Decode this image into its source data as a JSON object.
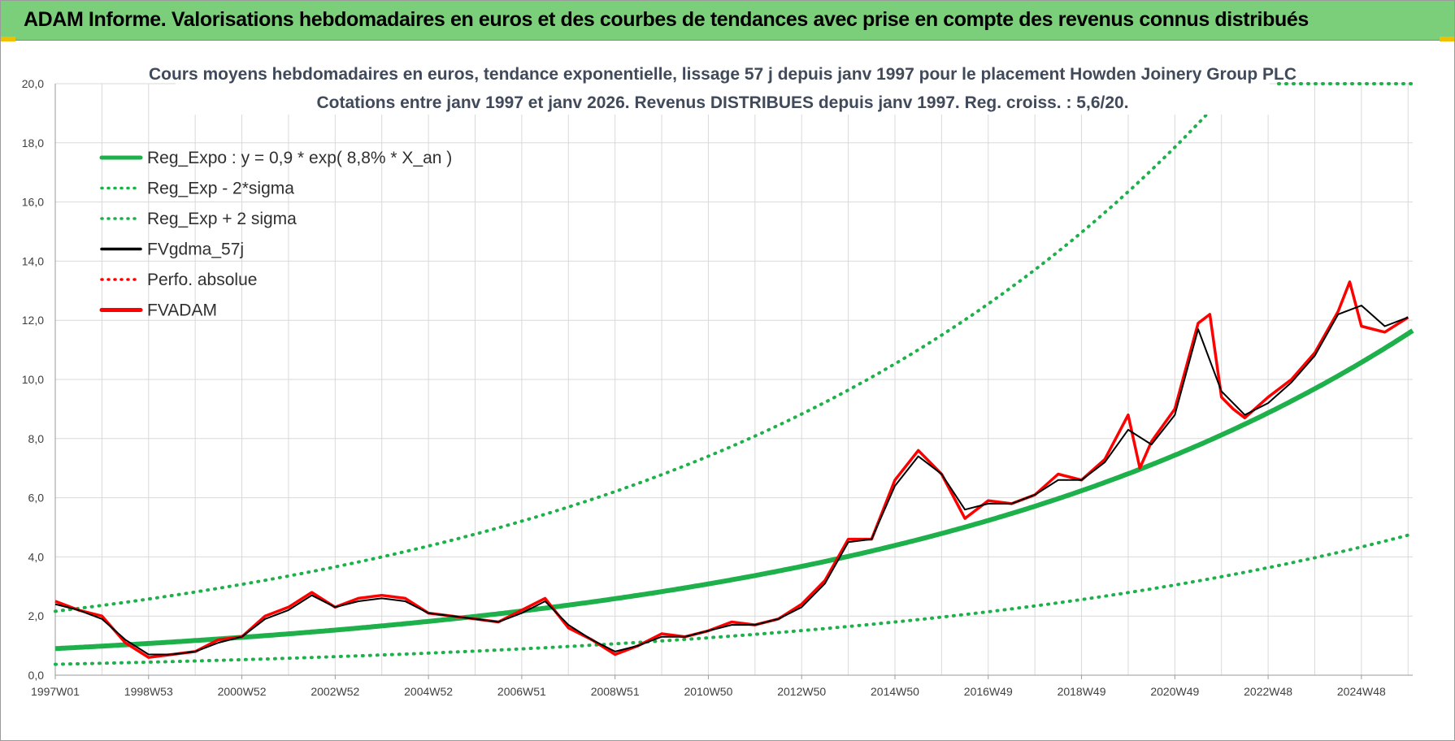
{
  "header": {
    "title": "ADAM Informe. Valorisations hebdomadaires en euros et des courbes de tendances avec prise en compte des revenus connus distribués"
  },
  "colors": {
    "header_bg": "#7ccf7a",
    "regression": "#1db04b",
    "fvadam": "#ff0000",
    "fvgdma": "#000000",
    "grid": "#d9d9d9"
  },
  "chart_data": {
    "type": "line",
    "title_line1": "Cours moyens hebdomadaires en euros, tendance exponentielle, lissage 57 j depuis janv 1997 pour le placement Howden Joinery Group PLC",
    "title_line2": "Cotations entre janv 1997 et janv 2026. Revenus DISTRIBUES depuis janv 1997. Reg. croiss. : 5,6/20.",
    "x_range": [
      1997.0,
      2026.1
    ],
    "ylim": [
      0,
      20
    ],
    "y_ticks": [
      "0,0",
      "2,0",
      "4,0",
      "6,0",
      "8,0",
      "10,0",
      "12,0",
      "14,0",
      "16,0",
      "18,0",
      "20,0"
    ],
    "x_ticks": [
      {
        "label": "1997W01",
        "x": 1997.0
      },
      {
        "label": "1998W53",
        "x": 1999.0
      },
      {
        "label": "2000W52",
        "x": 2001.0
      },
      {
        "label": "2002W52",
        "x": 2003.0
      },
      {
        "label": "2004W52",
        "x": 2005.0
      },
      {
        "label": "2006W51",
        "x": 2007.0
      },
      {
        "label": "2008W51",
        "x": 2009.0
      },
      {
        "label": "2010W50",
        "x": 2011.0
      },
      {
        "label": "2012W50",
        "x": 2013.0
      },
      {
        "label": "2014W50",
        "x": 2015.0
      },
      {
        "label": "2016W49",
        "x": 2017.0
      },
      {
        "label": "2018W49",
        "x": 2019.0
      },
      {
        "label": "2020W49",
        "x": 2021.0
      },
      {
        "label": "2022W48",
        "x": 2023.0
      },
      {
        "label": "2024W48",
        "x": 2025.0
      }
    ],
    "grid": true,
    "legend_position": "top-left",
    "legend": [
      {
        "label": "Reg_Expo : y = 0,9 * exp( 8,8% *  X_an )",
        "style": "solid",
        "color": "#1db04b"
      },
      {
        "label": "Reg_Exp - 2*sigma",
        "style": "dotted",
        "color": "#1db04b"
      },
      {
        "label": "Reg_Exp + 2 sigma",
        "style": "dotted",
        "color": "#1db04b"
      },
      {
        "label": "FVgdma_57j",
        "style": "solid",
        "color": "#000000"
      },
      {
        "label": "Perfo. absolue",
        "style": "dotted",
        "color": "#ff0000"
      },
      {
        "label": "FVADAM",
        "style": "solid",
        "color": "#ff0000"
      }
    ],
    "regression": {
      "a": 0.9,
      "rate": 0.088,
      "x0": 1997.0,
      "lower_factor": 0.41,
      "upper_factor": 2.4
    },
    "series": [
      {
        "name": "FVADAM",
        "x": [
          1997.0,
          1997.5,
          1998.0,
          1998.5,
          1999.0,
          1999.5,
          2000.0,
          2000.5,
          2001.0,
          2001.5,
          2002.0,
          2002.5,
          2003.0,
          2003.5,
          2004.0,
          2004.5,
          2005.0,
          2005.5,
          2006.0,
          2006.5,
          2007.0,
          2007.5,
          2008.0,
          2008.5,
          2009.0,
          2009.5,
          2010.0,
          2010.5,
          2011.0,
          2011.5,
          2012.0,
          2012.5,
          2013.0,
          2013.5,
          2014.0,
          2014.5,
          2015.0,
          2015.5,
          2016.0,
          2016.5,
          2017.0,
          2017.5,
          2018.0,
          2018.5,
          2019.0,
          2019.5,
          2020.0,
          2020.25,
          2020.5,
          2021.0,
          2021.5,
          2021.75,
          2022.0,
          2022.25,
          2022.5,
          2023.0,
          2023.5,
          2024.0,
          2024.5,
          2024.75,
          2025.0,
          2025.5,
          2026.0
        ],
        "y": [
          2.5,
          2.2,
          2.0,
          1.1,
          0.6,
          0.7,
          0.8,
          1.2,
          1.3,
          2.0,
          2.3,
          2.8,
          2.3,
          2.6,
          2.7,
          2.6,
          2.1,
          2.0,
          1.9,
          1.8,
          2.2,
          2.6,
          1.6,
          1.2,
          0.7,
          1.0,
          1.4,
          1.3,
          1.5,
          1.8,
          1.7,
          1.9,
          2.4,
          3.2,
          4.6,
          4.6,
          6.6,
          7.6,
          6.8,
          5.3,
          5.9,
          5.8,
          6.1,
          6.8,
          6.6,
          7.3,
          8.8,
          7.0,
          7.9,
          9.0,
          11.9,
          12.2,
          9.4,
          9.0,
          8.7,
          9.4,
          10.0,
          10.9,
          12.3,
          13.3,
          11.8,
          11.6,
          12.1
        ]
      },
      {
        "name": "FVgdma_57j",
        "x": [
          1997.0,
          1997.5,
          1998.0,
          1998.5,
          1999.0,
          1999.5,
          2000.0,
          2000.5,
          2001.0,
          2001.5,
          2002.0,
          2002.5,
          2003.0,
          2003.5,
          2004.0,
          2004.5,
          2005.0,
          2005.5,
          2006.0,
          2006.5,
          2007.0,
          2007.5,
          2008.0,
          2008.5,
          2009.0,
          2009.5,
          2010.0,
          2010.5,
          2011.0,
          2011.5,
          2012.0,
          2012.5,
          2013.0,
          2013.5,
          2014.0,
          2014.5,
          2015.0,
          2015.5,
          2016.0,
          2016.5,
          2017.0,
          2017.5,
          2018.0,
          2018.5,
          2019.0,
          2019.5,
          2020.0,
          2020.5,
          2021.0,
          2021.5,
          2022.0,
          2022.5,
          2023.0,
          2023.5,
          2024.0,
          2024.5,
          2025.0,
          2025.5,
          2026.0
        ],
        "y": [
          2.4,
          2.2,
          1.9,
          1.2,
          0.7,
          0.7,
          0.8,
          1.1,
          1.3,
          1.9,
          2.2,
          2.7,
          2.3,
          2.5,
          2.6,
          2.5,
          2.1,
          2.0,
          1.9,
          1.8,
          2.1,
          2.5,
          1.7,
          1.2,
          0.8,
          1.0,
          1.3,
          1.3,
          1.5,
          1.7,
          1.7,
          1.9,
          2.3,
          3.1,
          4.5,
          4.6,
          6.4,
          7.4,
          6.8,
          5.6,
          5.8,
          5.8,
          6.1,
          6.6,
          6.6,
          7.2,
          8.3,
          7.8,
          8.8,
          11.7,
          9.6,
          8.8,
          9.2,
          9.9,
          10.8,
          12.2,
          12.5,
          11.8,
          12.1
        ]
      }
    ]
  }
}
